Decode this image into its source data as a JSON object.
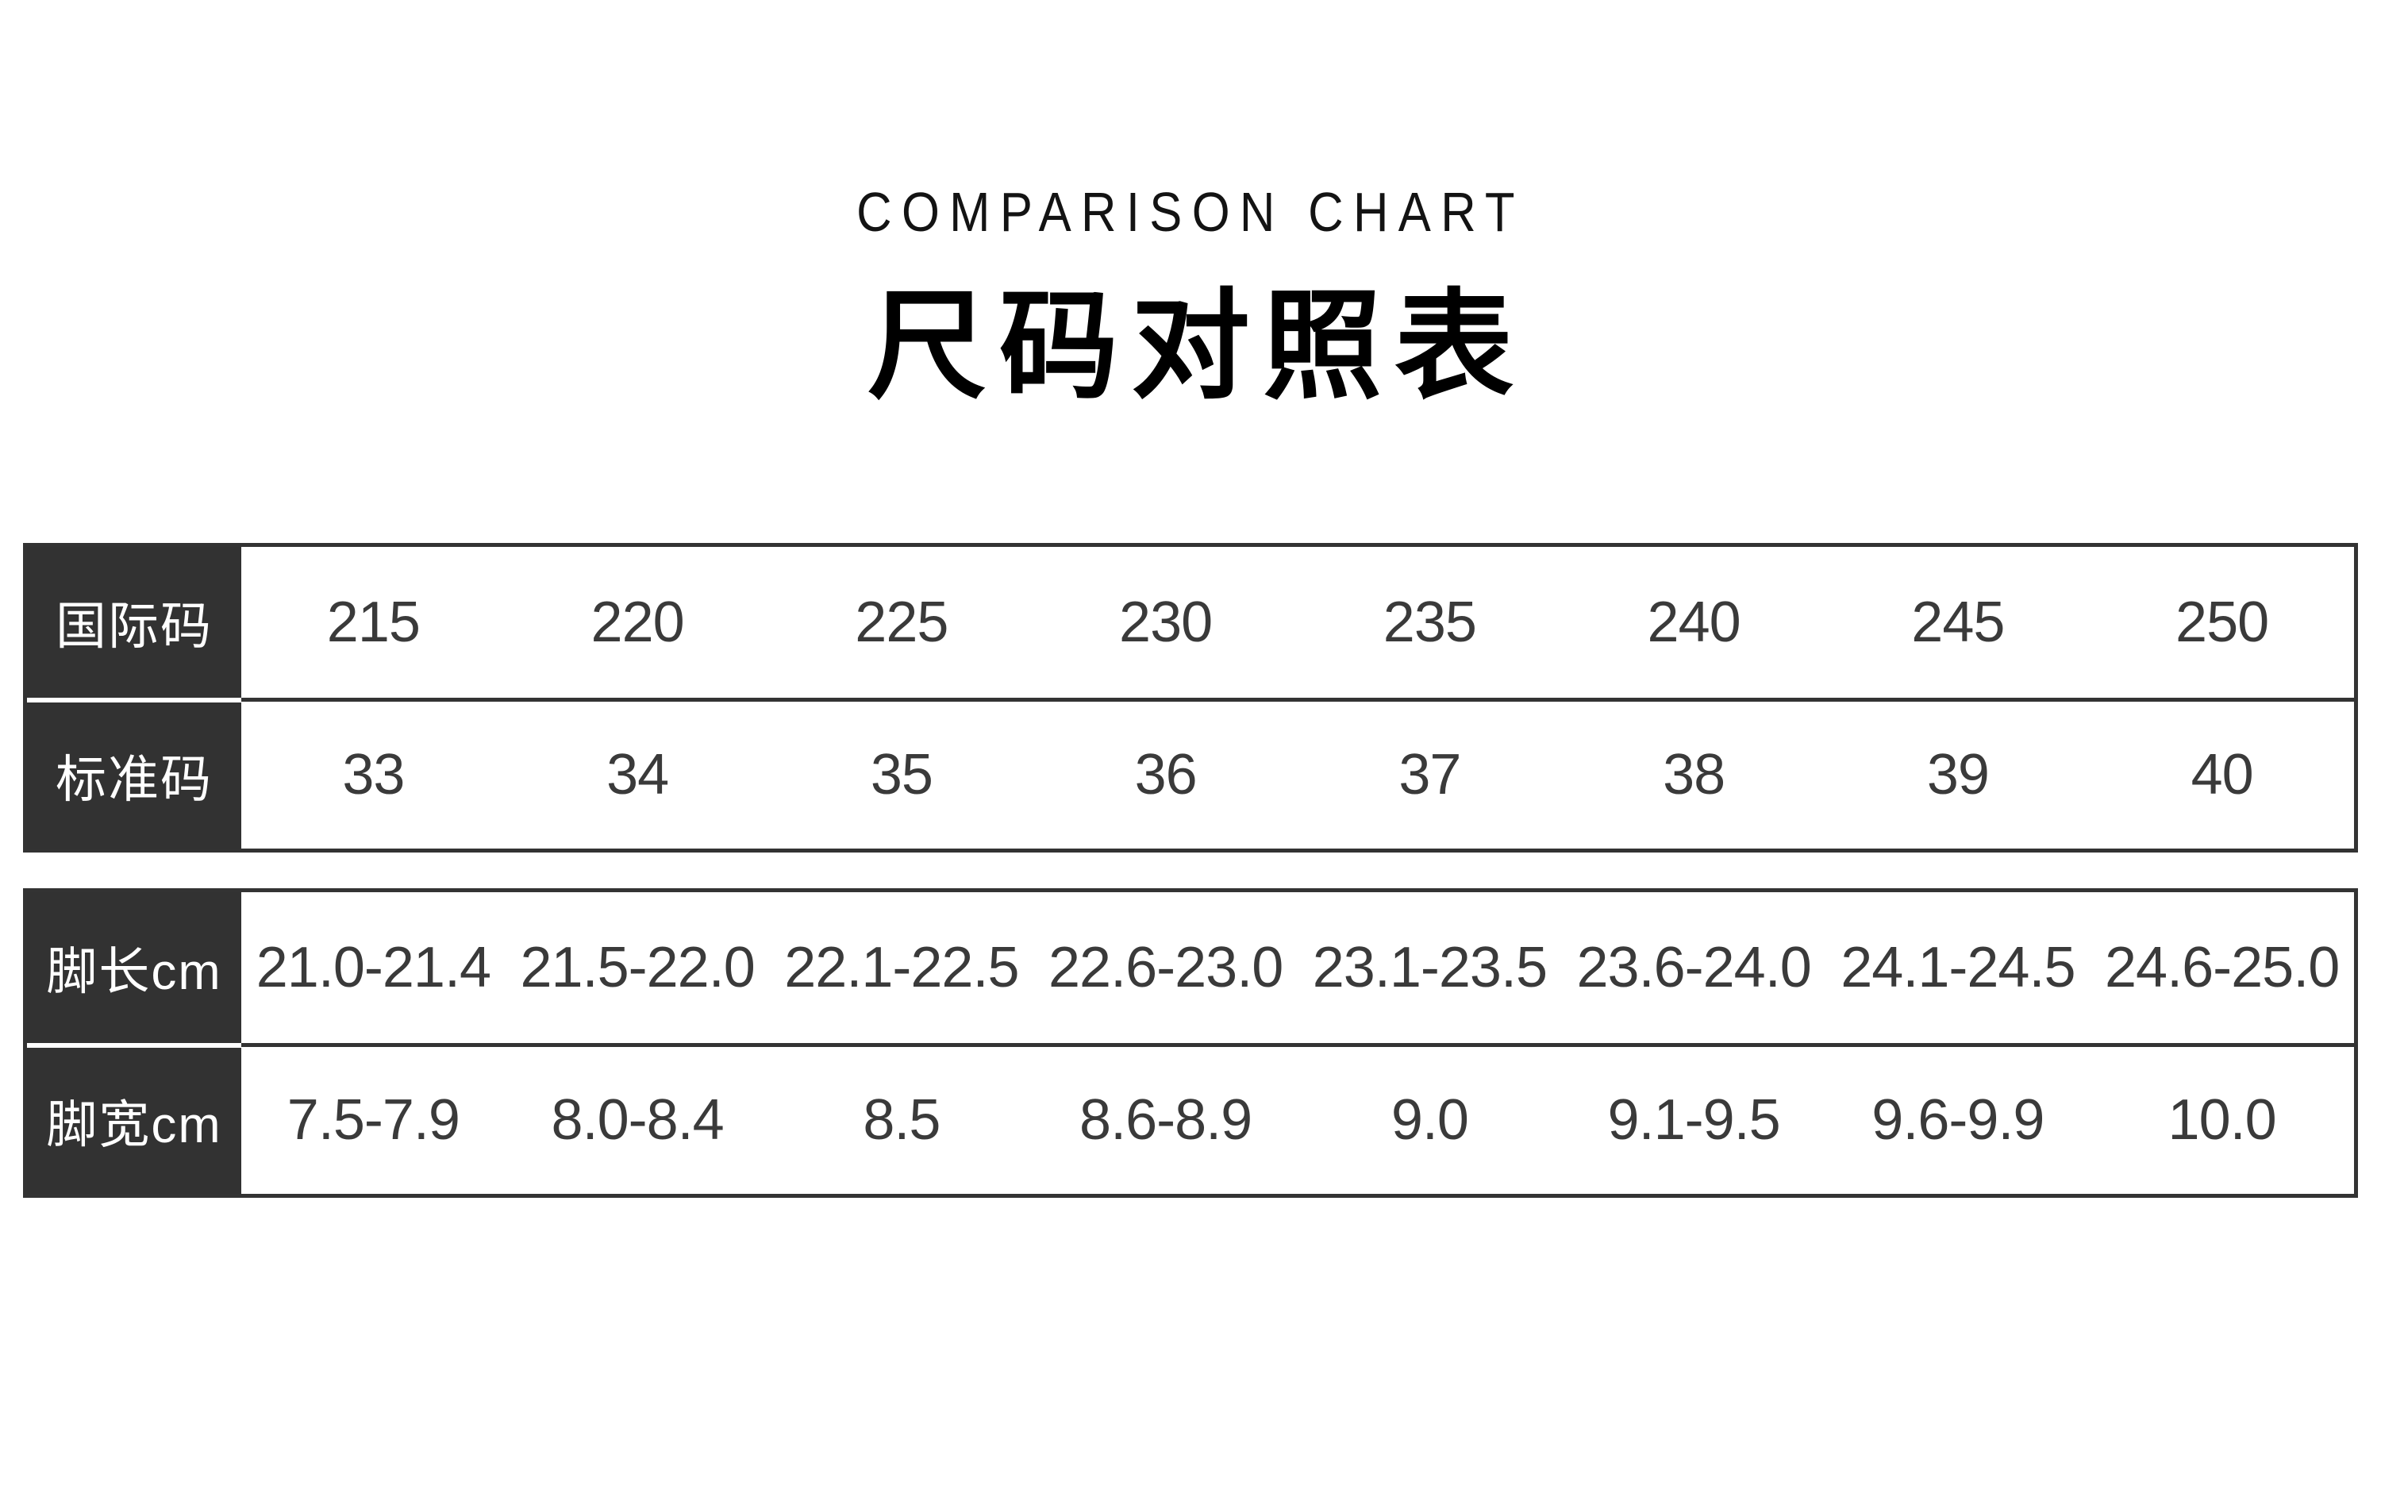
{
  "header": {
    "title_en": "COMPARISON CHART",
    "title_zh": "尺码对照表"
  },
  "tables": {
    "size_codes": {
      "rows": [
        {
          "label": "国际码",
          "values": [
            "215",
            "220",
            "225",
            "230",
            "235",
            "240",
            "245",
            "250"
          ]
        },
        {
          "label": "标准码",
          "values": [
            "33",
            "34",
            "35",
            "36",
            "37",
            "38",
            "39",
            "40"
          ]
        }
      ]
    },
    "foot_measurements": {
      "rows": [
        {
          "label": "脚长cm",
          "values": [
            "21.0-21.4",
            "21.5-22.0",
            "22.1-22.5",
            "22.6-23.0",
            "23.1-23.5",
            "23.6-24.0",
            "24.1-24.5",
            "24.6-25.0"
          ]
        },
        {
          "label": "脚宽cm",
          "values": [
            "7.5-7.9",
            "8.0-8.4",
            "8.5",
            "8.6-8.9",
            "9.0",
            "9.1-9.5",
            "9.6-9.9",
            "10.0"
          ]
        }
      ]
    }
  },
  "colors": {
    "page_bg": "#ffffff",
    "title_text": "#131313",
    "header_cell_bg": "#323232",
    "table_border": "#333333",
    "value_text": "#3a3a3a"
  },
  "chart_data": {
    "type": "table",
    "title": "COMPARISON CHART 尺码对照表",
    "row_headers": [
      "国际码",
      "标准码",
      "脚长cm",
      "脚宽cm"
    ],
    "columns_count": 8,
    "rows": [
      [
        "215",
        "220",
        "225",
        "230",
        "235",
        "240",
        "245",
        "250"
      ],
      [
        "33",
        "34",
        "35",
        "36",
        "37",
        "38",
        "39",
        "40"
      ],
      [
        "21.0-21.4",
        "21.5-22.0",
        "22.1-22.5",
        "22.6-23.0",
        "23.1-23.5",
        "23.6-24.0",
        "24.1-24.5",
        "24.6-25.0"
      ],
      [
        "7.5-7.9",
        "8.0-8.4",
        "8.5",
        "8.6-8.9",
        "9.0",
        "9.1-9.5",
        "9.6-9.9",
        "10.0"
      ]
    ],
    "layout_hints": {
      "grid": "off",
      "label_column_dark": true,
      "two_table_groups": [
        "size_codes",
        "foot_measurements"
      ]
    }
  }
}
